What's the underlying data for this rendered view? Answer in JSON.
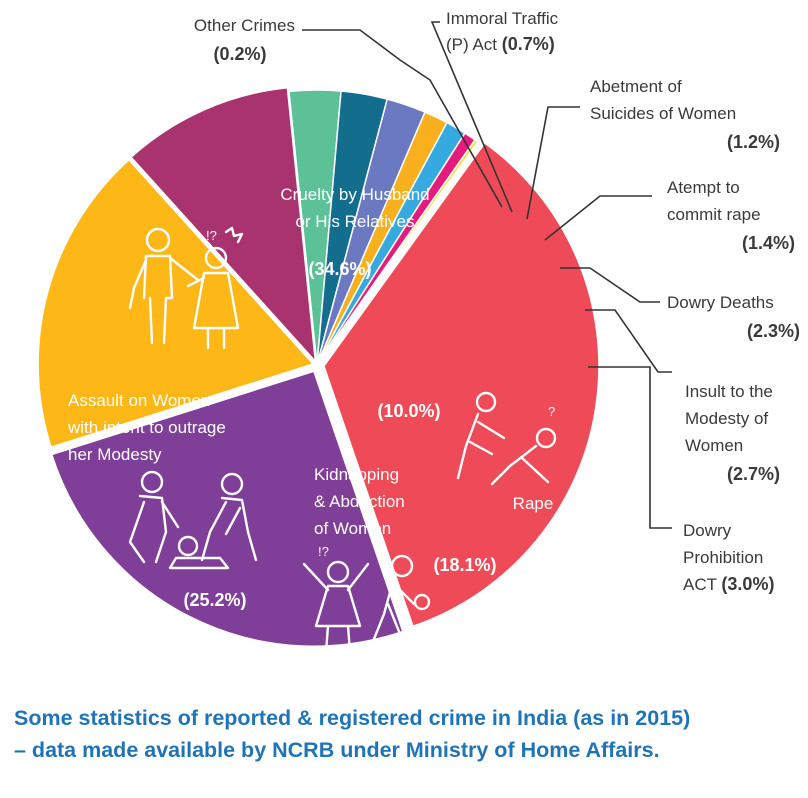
{
  "chart_data": {
    "type": "pie",
    "slices": [
      {
        "name": "Cruelty by Husband or His Relatives",
        "lines": [
          "Cruelty by Husband",
          "or His Relatives"
        ],
        "value": 34.6,
        "label": "(34.6%)",
        "color": "#ee4a57"
      },
      {
        "name": "Assault on Women with intent to outrage her Modesty",
        "lines": [
          "Assault on Women",
          "with intent to outrage",
          "her Modesty"
        ],
        "value": 25.2,
        "label": "(25.2%)",
        "color": "#7f3f98"
      },
      {
        "name": "Kidnapping & Abduction of Women",
        "lines": [
          "Kidnapping",
          "& Abduction",
          "of Women"
        ],
        "value": 18.1,
        "label": "(18.1%)",
        "color": "#fdb717"
      },
      {
        "name": "Rape",
        "lines": [
          "Rape"
        ],
        "value": 10.0,
        "label": "(10.0%)",
        "color": "#a8336e"
      },
      {
        "name": "Dowry Prohibition ACT",
        "lines": [
          "Dowry",
          "Prohibition",
          "ACT"
        ],
        "value": 3.0,
        "label": "(3.0%)",
        "color": "#5cc197"
      },
      {
        "name": "Insult to the Modesty of Women",
        "lines": [
          "Insult to the",
          "Modesty of",
          "Women"
        ],
        "value": 2.7,
        "label": "(2.7%)",
        "color": "#136d8d"
      },
      {
        "name": "Dowry Deaths",
        "lines": [
          "Dowry Deaths"
        ],
        "value": 2.3,
        "label": "(2.3%)",
        "color": "#6a79c1"
      },
      {
        "name": "Atempt to commit rape",
        "lines": [
          "Atempt to",
          "commit rape"
        ],
        "value": 1.4,
        "label": "(1.4%)",
        "color": "#f8b01f"
      },
      {
        "name": "Abetment of Suicides of Women",
        "lines": [
          "Abetment of",
          "Suicides of Women"
        ],
        "value": 1.2,
        "label": "(1.2%)",
        "color": "#36a9e1"
      },
      {
        "name": "Immoral Traffic (P) Act",
        "lines": [
          "Immoral Traffic",
          "(P) Act"
        ],
        "value": 0.7,
        "label": "(0.7%)",
        "color": "#e5197e"
      },
      {
        "name": "Other Crimes",
        "lines": [
          "Other Crimes"
        ],
        "value": 0.2,
        "label": "(0.2%)",
        "color": "#f3e33c"
      }
    ]
  },
  "caption": {
    "line1": "Some statistics of reported & registered crime in India (as in 2015)",
    "line2": "– data made available by NCRB under Ministry of Home Affairs."
  }
}
